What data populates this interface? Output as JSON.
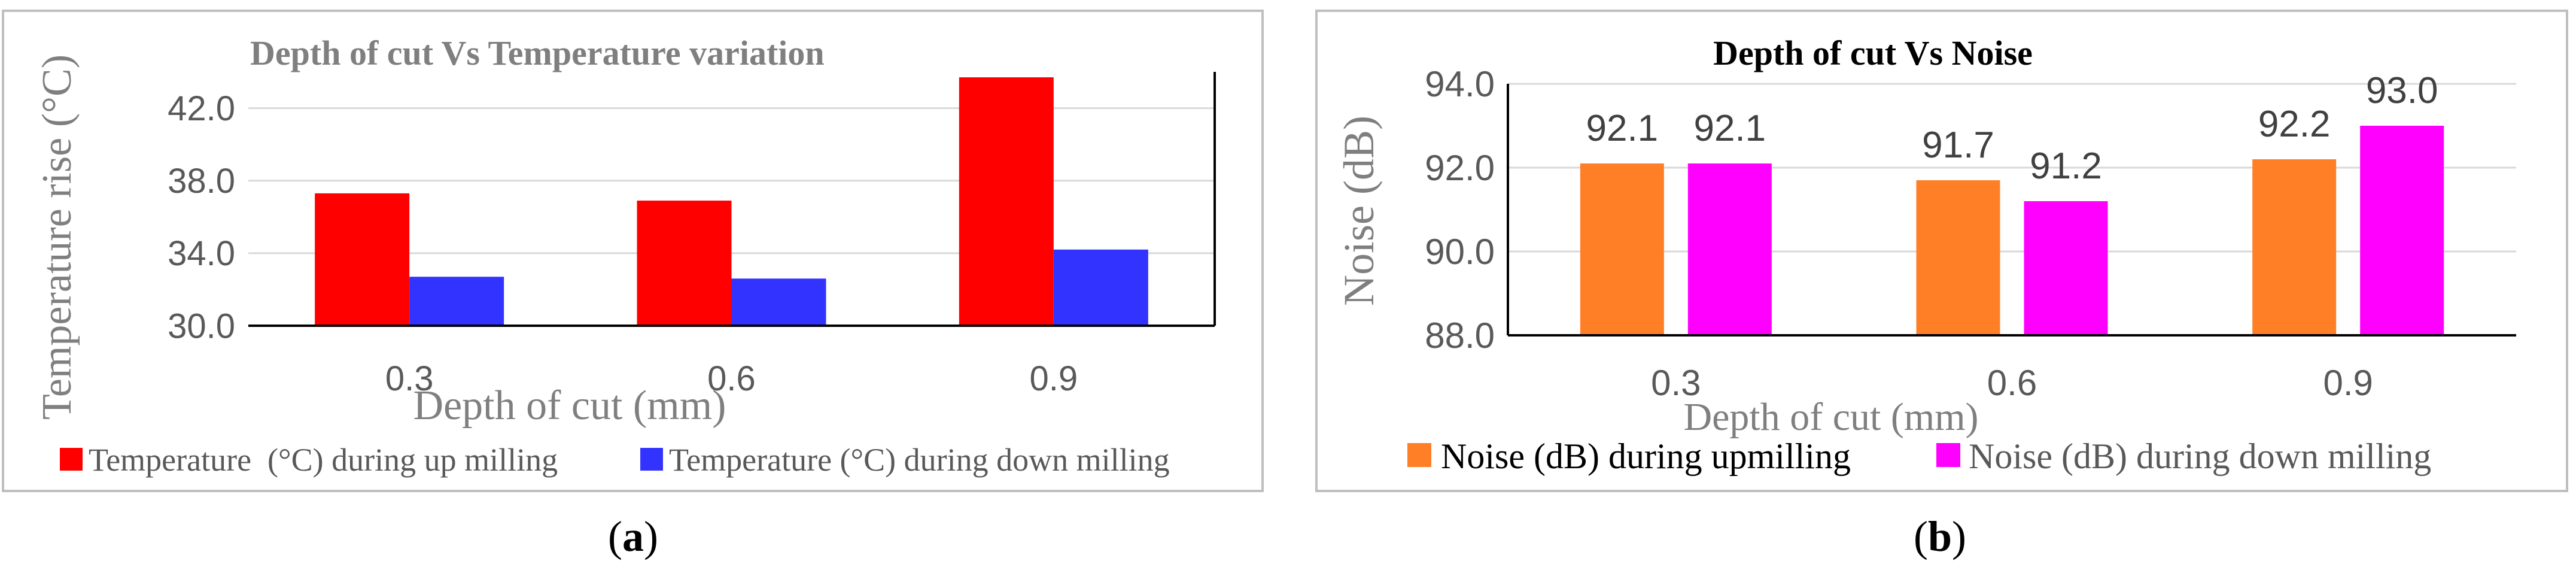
{
  "chart_data": [
    {
      "type": "bar",
      "panel_label": "a",
      "title": "Depth of cut Vs Temperature variation",
      "xlabel": "Depth of cut (mm)",
      "ylabel": "Temperature rise (°C)",
      "categories": [
        "0.3",
        "0.6",
        "0.9"
      ],
      "ylim": [
        30.0,
        44.0
      ],
      "yticks": [
        "30.0",
        "34.0",
        "38.0",
        "42.0"
      ],
      "ytick_values": [
        30,
        34,
        38,
        42
      ],
      "grid": true,
      "legend_position": "bottom",
      "data_labels": false,
      "series": [
        {
          "name": "Temperature  (°C) during up milling",
          "color": "#ff0000",
          "values": [
            37.3,
            36.9,
            43.7
          ]
        },
        {
          "name": "Temperature (°C) during down milling",
          "color": "#3333ff",
          "values": [
            32.7,
            32.6,
            34.2
          ]
        }
      ]
    },
    {
      "type": "bar",
      "panel_label": "b",
      "title": "Depth of cut Vs Noise",
      "xlabel": "Depth of cut (mm)",
      "ylabel": "Noise (dB)",
      "categories": [
        "0.3",
        "0.6",
        "0.9"
      ],
      "ylim": [
        88.0,
        94.0
      ],
      "yticks": [
        "88.0",
        "90.0",
        "92.0",
        "94.0"
      ],
      "ytick_values": [
        88,
        90,
        92,
        94
      ],
      "grid": true,
      "legend_position": "bottom",
      "data_labels": true,
      "series": [
        {
          "name": "Noise (dB) during upmilling",
          "color": "#ff7f27",
          "values": [
            92.1,
            91.7,
            92.2
          ],
          "labels": [
            "92.1",
            "91.7",
            "92.2"
          ]
        },
        {
          "name": "Noise (dB) during down milling",
          "color": "#ff00ff",
          "values": [
            92.1,
            91.2,
            93.0
          ],
          "labels": [
            "92.1",
            "91.2",
            "93.0"
          ]
        }
      ]
    }
  ],
  "colors": {
    "frame": "#bfbfbf",
    "grid": "#d9d9d9",
    "axis": "#000000",
    "title": "#7f7f7f",
    "tick": "#595959",
    "axis_title": "#7f7f7f"
  }
}
